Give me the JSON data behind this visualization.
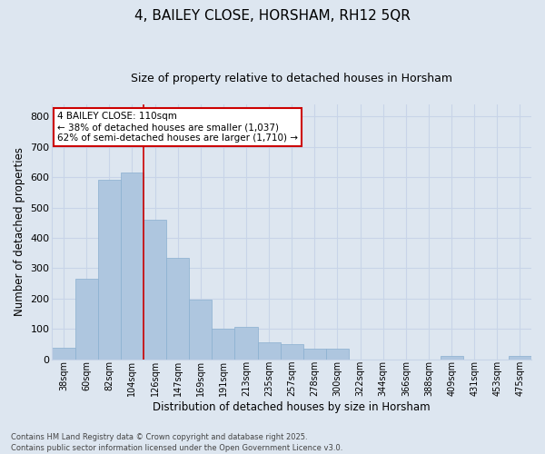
{
  "title": "4, BAILEY CLOSE, HORSHAM, RH12 5QR",
  "subtitle": "Size of property relative to detached houses in Horsham",
  "xlabel": "Distribution of detached houses by size in Horsham",
  "ylabel": "Number of detached properties",
  "footer": "Contains HM Land Registry data © Crown copyright and database right 2025.\nContains public sector information licensed under the Open Government Licence v3.0.",
  "categories": [
    "38sqm",
    "60sqm",
    "82sqm",
    "104sqm",
    "126sqm",
    "147sqm",
    "169sqm",
    "191sqm",
    "213sqm",
    "235sqm",
    "257sqm",
    "278sqm",
    "300sqm",
    "322sqm",
    "344sqm",
    "366sqm",
    "388sqm",
    "409sqm",
    "431sqm",
    "453sqm",
    "475sqm"
  ],
  "values": [
    38,
    265,
    590,
    615,
    460,
    335,
    195,
    100,
    105,
    55,
    50,
    35,
    35,
    0,
    0,
    0,
    0,
    10,
    0,
    0,
    10
  ],
  "bar_color": "#aec6df",
  "bar_edge_color": "#8aafd0",
  "grid_color": "#c8d4e8",
  "background_color": "#dde6f0",
  "vline_x": 3.5,
  "vline_color": "#cc0000",
  "annotation_text": "4 BAILEY CLOSE: 110sqm\n← 38% of detached houses are smaller (1,037)\n62% of semi-detached houses are larger (1,710) →",
  "annotation_box_color": "#ffffff",
  "annotation_border_color": "#cc0000",
  "ylim": [
    0,
    840
  ],
  "yticks": [
    0,
    100,
    200,
    300,
    400,
    500,
    600,
    700,
    800
  ],
  "title_fontsize": 11,
  "subtitle_fontsize": 9,
  "annotation_fontsize": 7.5
}
